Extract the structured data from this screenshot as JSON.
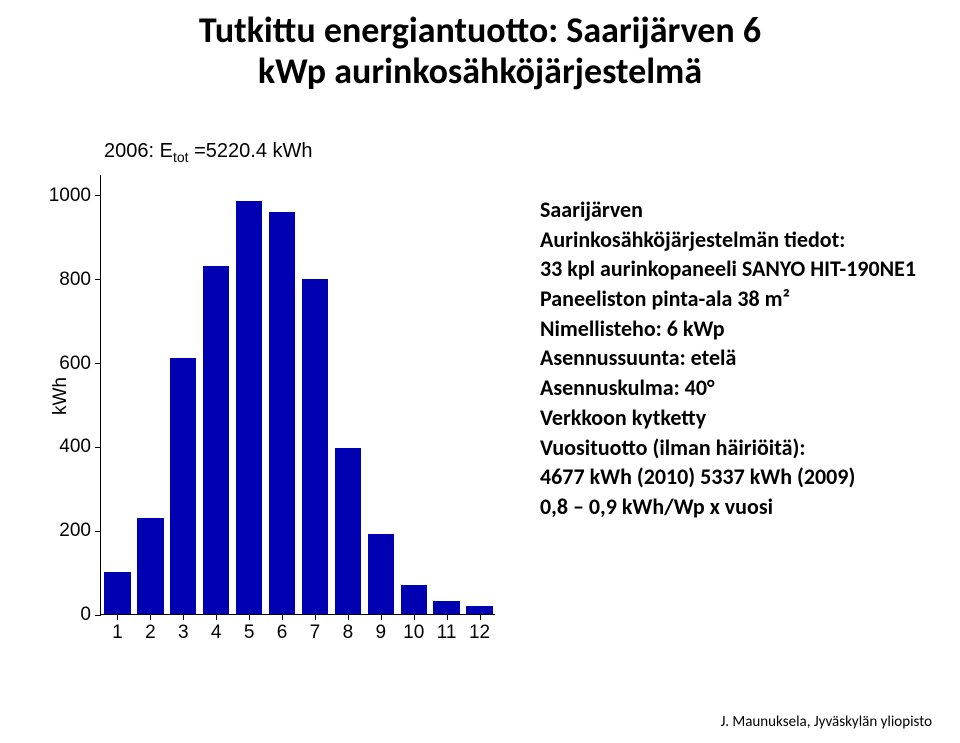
{
  "title_line1": "Tutkittu energiantuotto: Saarijärven 6",
  "title_line2": "kWp aurinkosähköjärjestelmä",
  "title_fontsize": 36,
  "chart": {
    "type": "bar",
    "title_prefix": "2006: E",
    "title_sub": "tot",
    "title_suffix": " =5220.4 kWh",
    "title_fontsize": 20,
    "ylabel": "kWh",
    "ylabel_fontsize": 19,
    "tick_fontsize": 19,
    "ylim": [
      0,
      1050
    ],
    "yticks": [
      0,
      200,
      400,
      600,
      800,
      1000
    ],
    "categories": [
      "1",
      "2",
      "3",
      "4",
      "5",
      "6",
      "7",
      "8",
      "9",
      "10",
      "11",
      "12"
    ],
    "values": [
      100,
      230,
      610,
      830,
      985,
      960,
      800,
      395,
      190,
      70,
      30,
      20
    ],
    "bar_color": "#0000b3",
    "bar_width": 0.8,
    "axis_color": "#000000",
    "background_color": "#ffffff"
  },
  "info": {
    "fontsize": 22,
    "lines": [
      "Saarijärven",
      "Aurinkosähköjärjestelmän tiedot:",
      "33 kpl aurinkopaneeli SANYO HIT-190NE1",
      "Paneeliston pinta-ala 38 m²",
      "Nimellisteho: 6 kWp",
      "Asennussuunta: etelä",
      "Asennuskulma:  40°",
      "Verkkoon kytketty",
      "Vuosituotto (ilman häiriöitä):",
      "4677 kWh (2010) 5337 kWh (2009)",
      "0,8 – 0,9 kWh/Wp x vuosi"
    ]
  },
  "footer": "J. Maunuksela, Jyväskylän yliopisto"
}
